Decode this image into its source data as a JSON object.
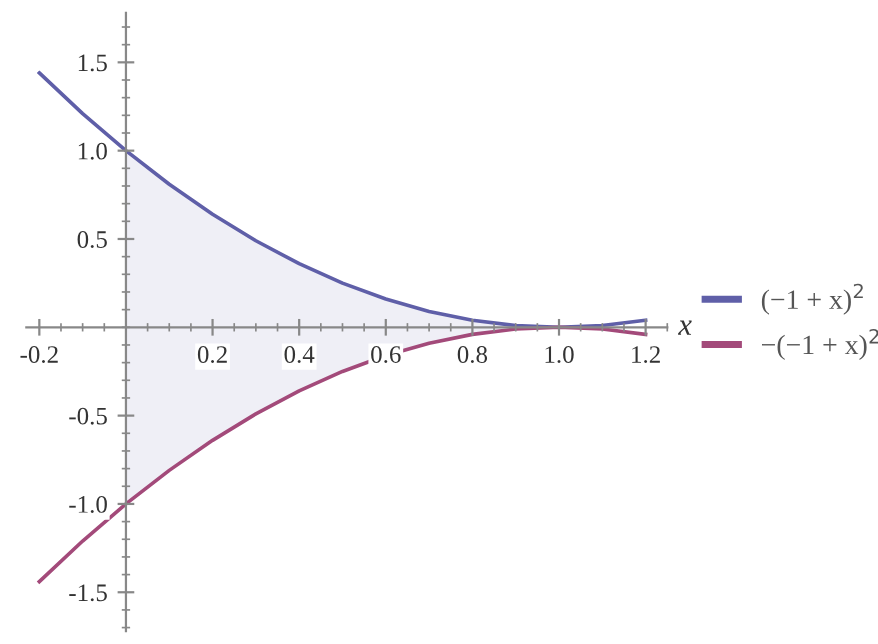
{
  "chart_data": {
    "type": "line",
    "xlabel": "x",
    "x": [
      -0.2,
      -0.1,
      0,
      0.1,
      0.2,
      0.3,
      0.4,
      0.5,
      0.6,
      0.7,
      0.8,
      0.9,
      1.0,
      1.1,
      1.2
    ],
    "series": [
      {
        "name": "(−1 + x)$^{2}$",
        "color": "#5f5fa8",
        "values": [
          1.44,
          1.21,
          1.0,
          0.81,
          0.64,
          0.49,
          0.36,
          0.25,
          0.16,
          0.09,
          0.04,
          0.01,
          0,
          0.01,
          0.04
        ],
        "lower": [
          null,
          null,
          -1.0,
          -0.81,
          -0.64,
          -0.49,
          -0.36,
          -0.25,
          -0.16,
          -0.09,
          -0.04,
          -0.01,
          0,
          null,
          null
        ],
        "upper": [
          null,
          null,
          1.0,
          0.81,
          0.64,
          0.49,
          0.36,
          0.25,
          0.16,
          0.09,
          0.04,
          0.01,
          0,
          null,
          null
        ]
      },
      {
        "name": "−(−1 + x)$^{2}$",
        "color": "#a34a7a",
        "values": [
          -1.44,
          -1.21,
          -1.0,
          -0.81,
          -0.64,
          -0.49,
          -0.36,
          -0.25,
          -0.16,
          -0.09,
          -0.04,
          -0.01,
          0,
          -0.01,
          -0.04
        ]
      }
    ],
    "xlim": [
      -0.23,
      1.25
    ],
    "ylim": [
      -1.72,
      1.78
    ],
    "xticks": [
      {
        "value": -0.2,
        "label": "-0.2"
      },
      {
        "value": 0.2,
        "label": "0.2"
      },
      {
        "value": 0.4,
        "label": "0.4"
      },
      {
        "value": 0.6,
        "label": "0.6"
      },
      {
        "value": 0.8,
        "label": "0.8"
      },
      {
        "value": 1.0,
        "label": "1.0"
      },
      {
        "value": 1.2,
        "label": "1.2"
      }
    ],
    "yticks": [
      {
        "value": -1.5,
        "label": "-1.5"
      },
      {
        "value": -1.0,
        "label": "-1.0"
      },
      {
        "value": -0.5,
        "label": "-0.5"
      },
      {
        "value": 0.5,
        "label": "0.5"
      },
      {
        "value": 1.0,
        "label": "1.0"
      },
      {
        "value": 1.5,
        "label": "1.5"
      }
    ],
    "grid": false,
    "legend": "right",
    "marker": "none",
    "line_style": "solid"
  }
}
